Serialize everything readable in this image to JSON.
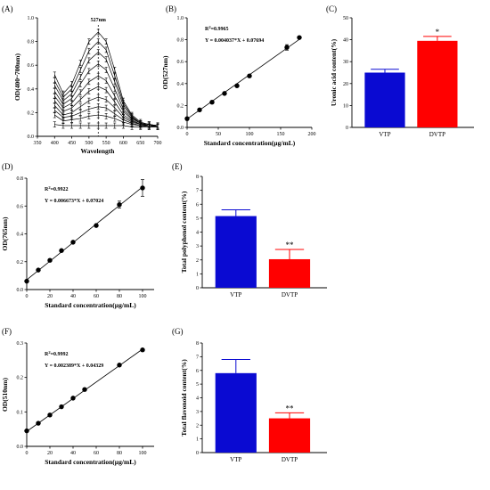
{
  "colors": {
    "vtp": "#0a0ad2",
    "dvtp": "#ff0000",
    "axis": "#000000"
  },
  "panel_labels": [
    "(A)",
    "(B)",
    "(C)",
    "(D)",
    "(E)",
    "(F)",
    "(G)"
  ],
  "chart_data": [
    {
      "panel": "(A)",
      "type": "line",
      "xlabel": "Wavelength",
      "ylabel": "OD(400~700nm)",
      "xlim": [
        350,
        700
      ],
      "ylim": [
        0.0,
        1.0
      ],
      "xticks": [
        "350",
        "400",
        "450",
        "500",
        "550",
        "600",
        "650",
        "700"
      ],
      "yticks": [
        "0.0",
        "0.2",
        "0.4",
        "0.6",
        "0.8",
        "1.0"
      ],
      "annotation": "527nm",
      "peak_x": 527,
      "x": [
        400,
        425,
        450,
        475,
        500,
        527,
        550,
        575,
        600,
        625,
        650,
        675,
        700
      ],
      "series": [
        {
          "values": [
            0.52,
            0.36,
            0.44,
            0.62,
            0.8,
            0.88,
            0.8,
            0.56,
            0.3,
            0.18,
            0.12,
            0.1,
            0.09
          ]
        },
        {
          "values": [
            0.47,
            0.33,
            0.4,
            0.56,
            0.72,
            0.8,
            0.73,
            0.51,
            0.28,
            0.17,
            0.11,
            0.1,
            0.09
          ]
        },
        {
          "values": [
            0.43,
            0.3,
            0.36,
            0.5,
            0.64,
            0.71,
            0.65,
            0.46,
            0.26,
            0.16,
            0.11,
            0.1,
            0.09
          ]
        },
        {
          "values": [
            0.38,
            0.27,
            0.32,
            0.44,
            0.55,
            0.61,
            0.56,
            0.4,
            0.23,
            0.15,
            0.11,
            0.09,
            0.09
          ]
        },
        {
          "values": [
            0.34,
            0.24,
            0.28,
            0.37,
            0.46,
            0.51,
            0.47,
            0.34,
            0.21,
            0.14,
            0.1,
            0.09,
            0.09
          ]
        },
        {
          "values": [
            0.3,
            0.21,
            0.24,
            0.31,
            0.38,
            0.42,
            0.39,
            0.29,
            0.18,
            0.13,
            0.1,
            0.09,
            0.09
          ]
        },
        {
          "values": [
            0.26,
            0.18,
            0.2,
            0.25,
            0.3,
            0.33,
            0.31,
            0.24,
            0.16,
            0.12,
            0.1,
            0.09,
            0.08
          ]
        },
        {
          "values": [
            0.22,
            0.16,
            0.17,
            0.2,
            0.23,
            0.25,
            0.24,
            0.19,
            0.14,
            0.11,
            0.09,
            0.09,
            0.08
          ]
        },
        {
          "values": [
            0.18,
            0.13,
            0.14,
            0.15,
            0.17,
            0.18,
            0.17,
            0.15,
            0.12,
            0.1,
            0.09,
            0.08,
            0.08
          ]
        },
        {
          "values": [
            0.1,
            0.09,
            0.09,
            0.09,
            0.09,
            0.09,
            0.09,
            0.09,
            0.09,
            0.08,
            0.08,
            0.08,
            0.08
          ]
        }
      ]
    },
    {
      "panel": "(B)",
      "type": "scatter",
      "xlabel": "Standard concentration(µg/mL)",
      "ylabel": "OD(527nm)",
      "xlim": [
        0,
        200
      ],
      "ylim": [
        0.0,
        1.0
      ],
      "xticks": [
        "0",
        "50",
        "100",
        "150",
        "200"
      ],
      "yticks": [
        "0.0",
        "0.2",
        "0.4",
        "0.6",
        "0.8",
        "1.0"
      ],
      "r2_prefix": "R",
      "r2_text": "=0.9965",
      "equation": "Y = 0.004037*X + 0.07694",
      "slope": 0.004037,
      "intercept": 0.07694,
      "x": [
        0,
        20,
        40,
        60,
        80,
        100,
        160,
        180
      ],
      "y": [
        0.08,
        0.16,
        0.23,
        0.31,
        0.38,
        0.47,
        0.73,
        0.82
      ],
      "err": [
        0,
        0,
        0,
        0,
        0,
        0,
        0.025,
        0
      ]
    },
    {
      "panel": "(C)",
      "type": "bar",
      "ylabel": "Uronic acid content(%)",
      "ylim": [
        0,
        50
      ],
      "yticks": [
        "0",
        "10",
        "20",
        "30",
        "40",
        "50"
      ],
      "categories": [
        "VTP",
        "DVTP"
      ],
      "values": [
        25.0,
        39.5
      ],
      "err": [
        1.5,
        2.0
      ],
      "significance": [
        "",
        "*"
      ]
    },
    {
      "panel": "(D)",
      "type": "scatter",
      "xlabel": "Standard concentration(µg/mL)",
      "ylabel": "OD(765nm)",
      "xlim": [
        0,
        110
      ],
      "ylim": [
        0.0,
        0.8
      ],
      "xticks": [
        "0",
        "20",
        "40",
        "60",
        "80",
        "100"
      ],
      "yticks": [
        "0.0",
        "0.2",
        "0.4",
        "0.6",
        "0.8"
      ],
      "r2_prefix": "R",
      "r2_text": "=0.9922",
      "equation": "Y = 0.006673*X + 0.07024",
      "slope": 0.006673,
      "intercept": 0.07024,
      "x": [
        0,
        10,
        20,
        30,
        40,
        60,
        80,
        100
      ],
      "y": [
        0.06,
        0.14,
        0.21,
        0.28,
        0.34,
        0.46,
        0.61,
        0.73
      ],
      "err": [
        0,
        0,
        0,
        0,
        0,
        0,
        0.025,
        0.06
      ]
    },
    {
      "panel": "(E)",
      "type": "bar",
      "ylabel": "Total polyphenol content(%)",
      "ylim": [
        0,
        8
      ],
      "yticks": [
        "0",
        "1",
        "2",
        "3",
        "4",
        "5",
        "6",
        "7",
        "8"
      ],
      "categories": [
        "VTP",
        "DVTP"
      ],
      "values": [
        5.15,
        2.05
      ],
      "err": [
        0.45,
        0.7
      ],
      "significance": [
        "",
        "**"
      ]
    },
    {
      "panel": "(F)",
      "type": "scatter",
      "xlabel": "Standard concentration(µg/mL)",
      "ylabel": "OD(510nm)",
      "xlim": [
        0,
        110
      ],
      "ylim": [
        0.0,
        0.3
      ],
      "xticks": [
        "0",
        "20",
        "40",
        "60",
        "80",
        "100"
      ],
      "yticks": [
        "0.0",
        "0.1",
        "0.2",
        "0.3"
      ],
      "r2_prefix": "R",
      "r2_text": "=0.9992",
      "equation": "Y = 0.002389*X + 0.04329",
      "slope": 0.002389,
      "intercept": 0.04329,
      "x": [
        0,
        10,
        20,
        30,
        40,
        50,
        80,
        100
      ],
      "y": [
        0.045,
        0.067,
        0.091,
        0.115,
        0.14,
        0.165,
        0.236,
        0.28
      ],
      "err": [
        0,
        0,
        0,
        0,
        0,
        0,
        0,
        0
      ]
    },
    {
      "panel": "(G)",
      "type": "bar",
      "ylabel": "Total flavonoid content(%)",
      "ylim": [
        0,
        8
      ],
      "yticks": [
        "0",
        "1",
        "2",
        "3",
        "4",
        "5",
        "6",
        "7",
        "8"
      ],
      "categories": [
        "VTP",
        "DVTP"
      ],
      "values": [
        5.8,
        2.5
      ],
      "err": [
        1.0,
        0.4
      ],
      "significance": [
        "",
        "**"
      ]
    }
  ]
}
